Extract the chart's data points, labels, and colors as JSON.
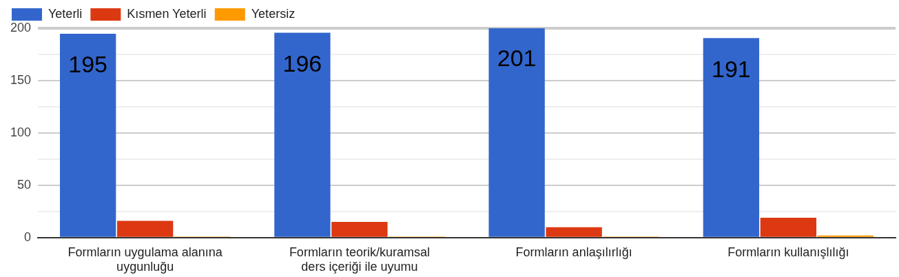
{
  "chart_data": {
    "type": "bar",
    "categories": [
      "Formların uygulama alanına uygunluğu",
      "Formların teorik/kuramsal ders içeriği ile uyumu",
      "Formların anlaşılırlığı",
      "Formların kullanışlılığı"
    ],
    "series": [
      {
        "name": "Yeterli",
        "color": "#3366cc",
        "values": [
          195,
          196,
          201,
          191
        ],
        "value_labels": [
          "195",
          "196",
          "201",
          "191"
        ]
      },
      {
        "name": "Kısmen Yeterli",
        "color": "#dc3912",
        "values": [
          16,
          15,
          10,
          19
        ]
      },
      {
        "name": "Yetersiz",
        "color": "#ff9900",
        "values": [
          1,
          1,
          1,
          2
        ]
      }
    ],
    "ylim": [
      0,
      201
    ],
    "yticks": [
      0,
      {
        "value": 25,
        "label": null
      },
      50,
      {
        "value": 75,
        "label": null
      },
      100,
      {
        "value": 125,
        "label": null
      },
      150,
      {
        "value": 175,
        "label": null
      },
      200
    ],
    "grid": "y",
    "legend": "top left"
  }
}
